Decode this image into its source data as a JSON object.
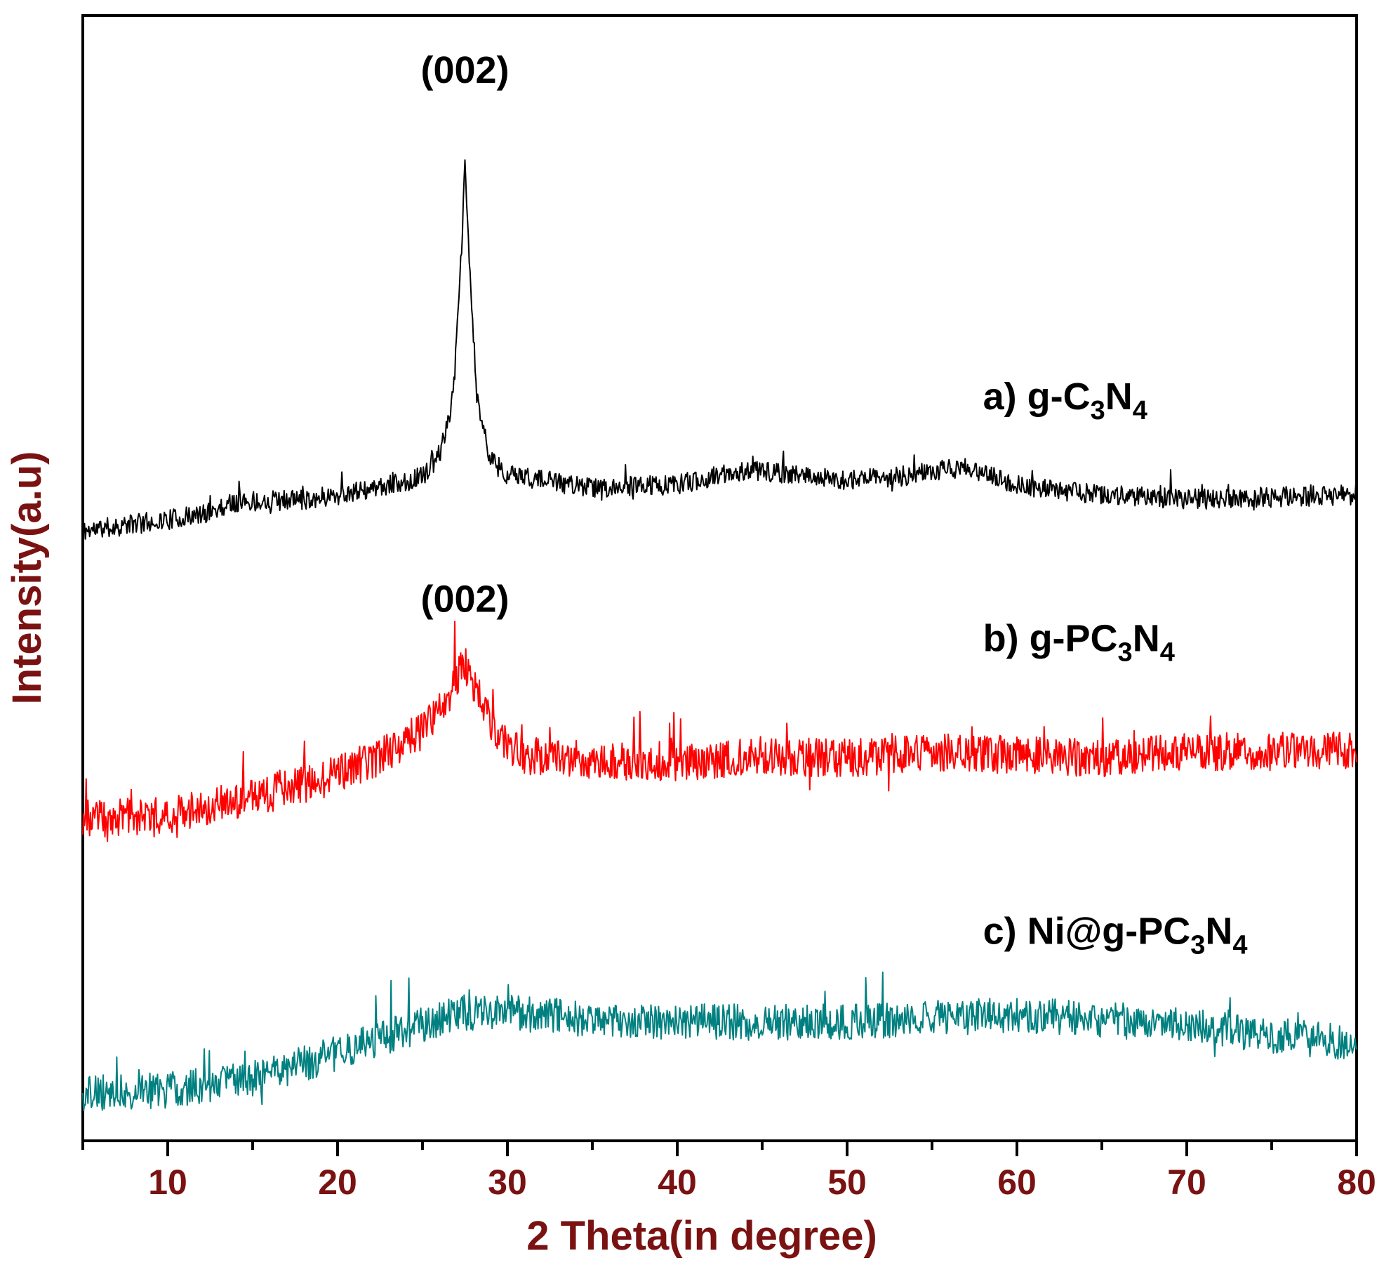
{
  "chart_data": {
    "type": "line",
    "title": "",
    "xlabel": "2 Theta(in degree)",
    "ylabel": "Intensity(a.u)",
    "xlim": [
      5,
      80
    ],
    "ylim": [
      0,
      100
    ],
    "x_ticks": [
      10,
      20,
      30,
      40,
      50,
      60,
      70,
      80
    ],
    "x_minor_step": 5,
    "y_ticks_shown": false,
    "grid": false,
    "legend": "none",
    "axis_label_color": "#7a1212",
    "annotations": [
      {
        "text": "(002)",
        "x": 27.5,
        "y": 94
      },
      {
        "text": "(002)",
        "x": 27.5,
        "y": 47
      }
    ],
    "series": [
      {
        "label_prefix": "a) g-C",
        "label_sub1": "3",
        "label_mid": "N",
        "label_sub2": "4",
        "label_pos": {
          "x": 58,
          "y": 65
        },
        "color": "#000000",
        "baseline_points": [
          [
            5,
            54.2
          ],
          [
            8,
            54.8
          ],
          [
            12,
            55.6
          ],
          [
            14,
            56.8
          ],
          [
            18,
            57.0
          ],
          [
            22,
            57.8
          ],
          [
            25,
            59.0
          ],
          [
            26,
            61.0
          ],
          [
            26.8,
            66
          ],
          [
            27.2,
            76
          ],
          [
            27.5,
            86.5
          ],
          [
            27.8,
            77
          ],
          [
            28.2,
            66
          ],
          [
            29,
            60.5
          ],
          [
            30,
            59.2
          ],
          [
            35,
            58.0
          ],
          [
            40,
            58.3
          ],
          [
            44,
            59.6
          ],
          [
            47,
            59.2
          ],
          [
            50,
            58.7
          ],
          [
            53,
            59.0
          ],
          [
            57,
            59.9
          ],
          [
            60,
            58.2
          ],
          [
            65,
            57.4
          ],
          [
            70,
            57.0
          ],
          [
            75,
            57.2
          ],
          [
            80,
            57.4
          ]
        ],
        "noise": 0.9,
        "seed": 11
      },
      {
        "label_prefix": "b) g-PC",
        "label_sub1": "3",
        "label_mid": "N",
        "label_sub2": "4",
        "label_pos": {
          "x": 58,
          "y": 43.5
        },
        "color": "#ff0000",
        "baseline_points": [
          [
            5,
            28.6
          ],
          [
            10,
            29.0
          ],
          [
            15,
            30.5
          ],
          [
            20,
            32.5
          ],
          [
            23,
            34.5
          ],
          [
            25,
            36.5
          ],
          [
            26.5,
            39.5
          ],
          [
            27.5,
            42.5
          ],
          [
            28.5,
            39.0
          ],
          [
            29.5,
            35.5
          ],
          [
            31,
            34.2
          ],
          [
            35,
            33.8
          ],
          [
            40,
            33.6
          ],
          [
            45,
            34.2
          ],
          [
            50,
            34.0
          ],
          [
            55,
            34.5
          ],
          [
            60,
            34.3
          ],
          [
            65,
            34.0
          ],
          [
            70,
            34.5
          ],
          [
            75,
            34.6
          ],
          [
            80,
            34.8
          ]
        ],
        "noise": 1.7,
        "seed": 23
      },
      {
        "label_prefix": "c) Ni@g-PC",
        "label_sub1": "3",
        "label_mid": "N",
        "label_sub2": "4",
        "label_pos": {
          "x": 58,
          "y": 17.5
        },
        "color": "#008080",
        "baseline_points": [
          [
            5,
            4.2
          ],
          [
            10,
            4.5
          ],
          [
            15,
            5.5
          ],
          [
            20,
            7.8
          ],
          [
            24,
            9.8
          ],
          [
            27,
            11.4
          ],
          [
            30,
            11.4
          ],
          [
            35,
            10.8
          ],
          [
            40,
            10.6
          ],
          [
            45,
            10.5
          ],
          [
            50,
            10.6
          ],
          [
            55,
            10.9
          ],
          [
            60,
            11.2
          ],
          [
            65,
            10.8
          ],
          [
            70,
            10.2
          ],
          [
            75,
            9.4
          ],
          [
            80,
            8.6
          ]
        ],
        "noise": 1.6,
        "seed": 37
      }
    ]
  }
}
